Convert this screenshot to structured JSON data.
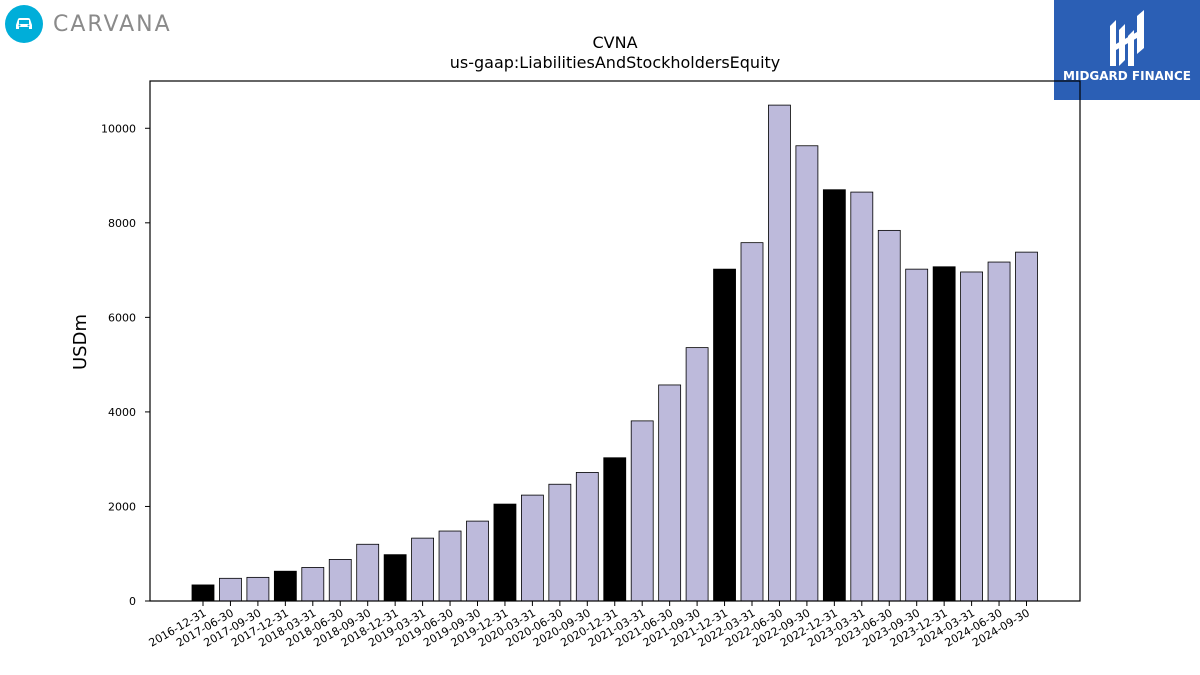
{
  "brand": {
    "name": "CARVANA"
  },
  "partner": {
    "name": "MIDGARD FINANCE"
  },
  "colors": {
    "highlight": "#000000",
    "default": "#bdbadb",
    "brand_accent": "#00aed9",
    "partner_bg": "#2b5fb5"
  },
  "chart_data": {
    "type": "bar",
    "title": "CVNA",
    "subtitle": "us-gaap:LiabilitiesAndStockholdersEquity",
    "xlabel": "",
    "ylabel": "USDm",
    "ylim": [
      0,
      11000
    ],
    "yticks": [
      0,
      2000,
      4000,
      6000,
      8000,
      10000
    ],
    "grid": false,
    "categories": [
      "2016-12-31",
      "2017-06-30",
      "2017-09-30",
      "2017-12-31",
      "2018-03-31",
      "2018-06-30",
      "2018-09-30",
      "2018-12-31",
      "2019-03-31",
      "2019-06-30",
      "2019-09-30",
      "2019-12-31",
      "2020-03-31",
      "2020-06-30",
      "2020-09-30",
      "2020-12-31",
      "2021-03-31",
      "2021-06-30",
      "2021-09-30",
      "2021-12-31",
      "2022-03-31",
      "2022-06-30",
      "2022-09-30",
      "2022-12-31",
      "2023-03-31",
      "2023-06-30",
      "2023-09-30",
      "2023-12-31",
      "2024-03-31",
      "2024-06-30",
      "2024-09-30"
    ],
    "values": [
      340,
      480,
      500,
      630,
      710,
      880,
      1200,
      980,
      1330,
      1480,
      1690,
      2050,
      2240,
      2470,
      2720,
      3030,
      3810,
      4570,
      5360,
      7020,
      7580,
      10490,
      9630,
      8700,
      8650,
      7840,
      7020,
      7070,
      6960,
      7170,
      7380
    ],
    "highlight": [
      true,
      false,
      false,
      true,
      false,
      false,
      false,
      true,
      false,
      false,
      false,
      true,
      false,
      false,
      false,
      true,
      false,
      false,
      false,
      true,
      false,
      false,
      false,
      true,
      false,
      false,
      false,
      true,
      false,
      false,
      false
    ]
  }
}
